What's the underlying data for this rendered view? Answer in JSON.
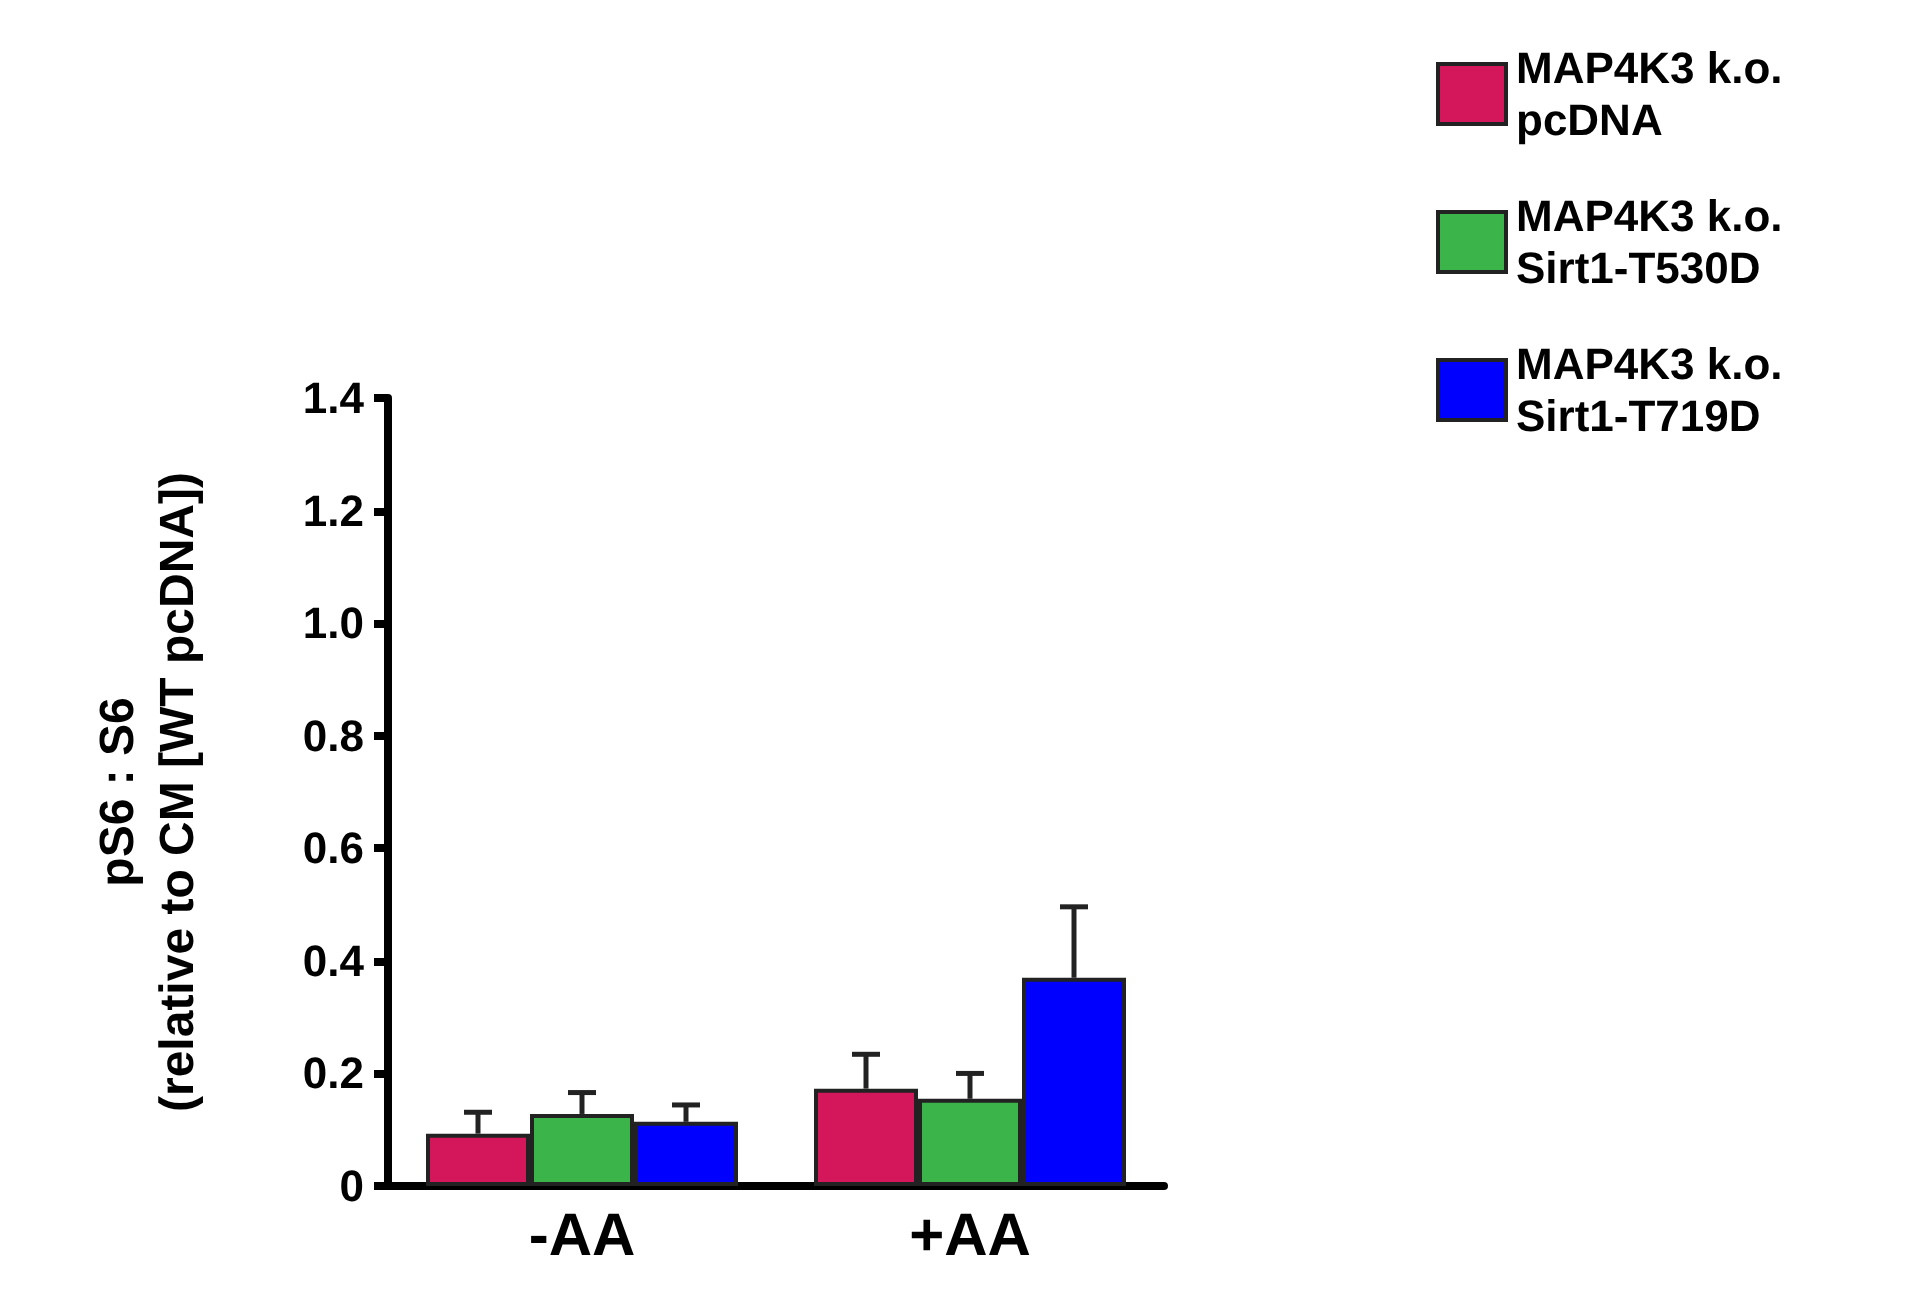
{
  "chart_data": {
    "type": "bar",
    "ylabel": "pS6 : S6\n(relative to CM [WT pcDNA])",
    "categories": [
      "-AA",
      "+AA"
    ],
    "series": [
      {
        "name": "MAP4K3 k.o.\npcDNA",
        "color": "#d4175a",
        "values": [
          0.093,
          0.173
        ],
        "errors": [
          [
            0.093,
            0.131
          ],
          [
            0.173,
            0.234
          ]
        ]
      },
      {
        "name": "MAP4K3 k.o.\nSirt1-T530D",
        "color": "#3bb54a",
        "values": [
          0.128,
          0.155
        ],
        "errors": [
          [
            0.128,
            0.166
          ],
          [
            0.155,
            0.2
          ]
        ]
      },
      {
        "name": "MAP4K3 k.o.\nSirt1-T719D",
        "color": "#0000ff",
        "values": [
          0.114,
          0.37
        ],
        "errors": [
          [
            0.114,
            0.144
          ],
          [
            0.37,
            0.496
          ]
        ]
      }
    ],
    "ylim": [
      0,
      1.4
    ],
    "yticks": [
      0,
      0.2,
      0.4,
      0.6,
      0.8,
      {
        "value": 1,
        "label": "1.0"
      },
      1.2,
      1.4
    ],
    "grid": false,
    "legend": "top right"
  }
}
